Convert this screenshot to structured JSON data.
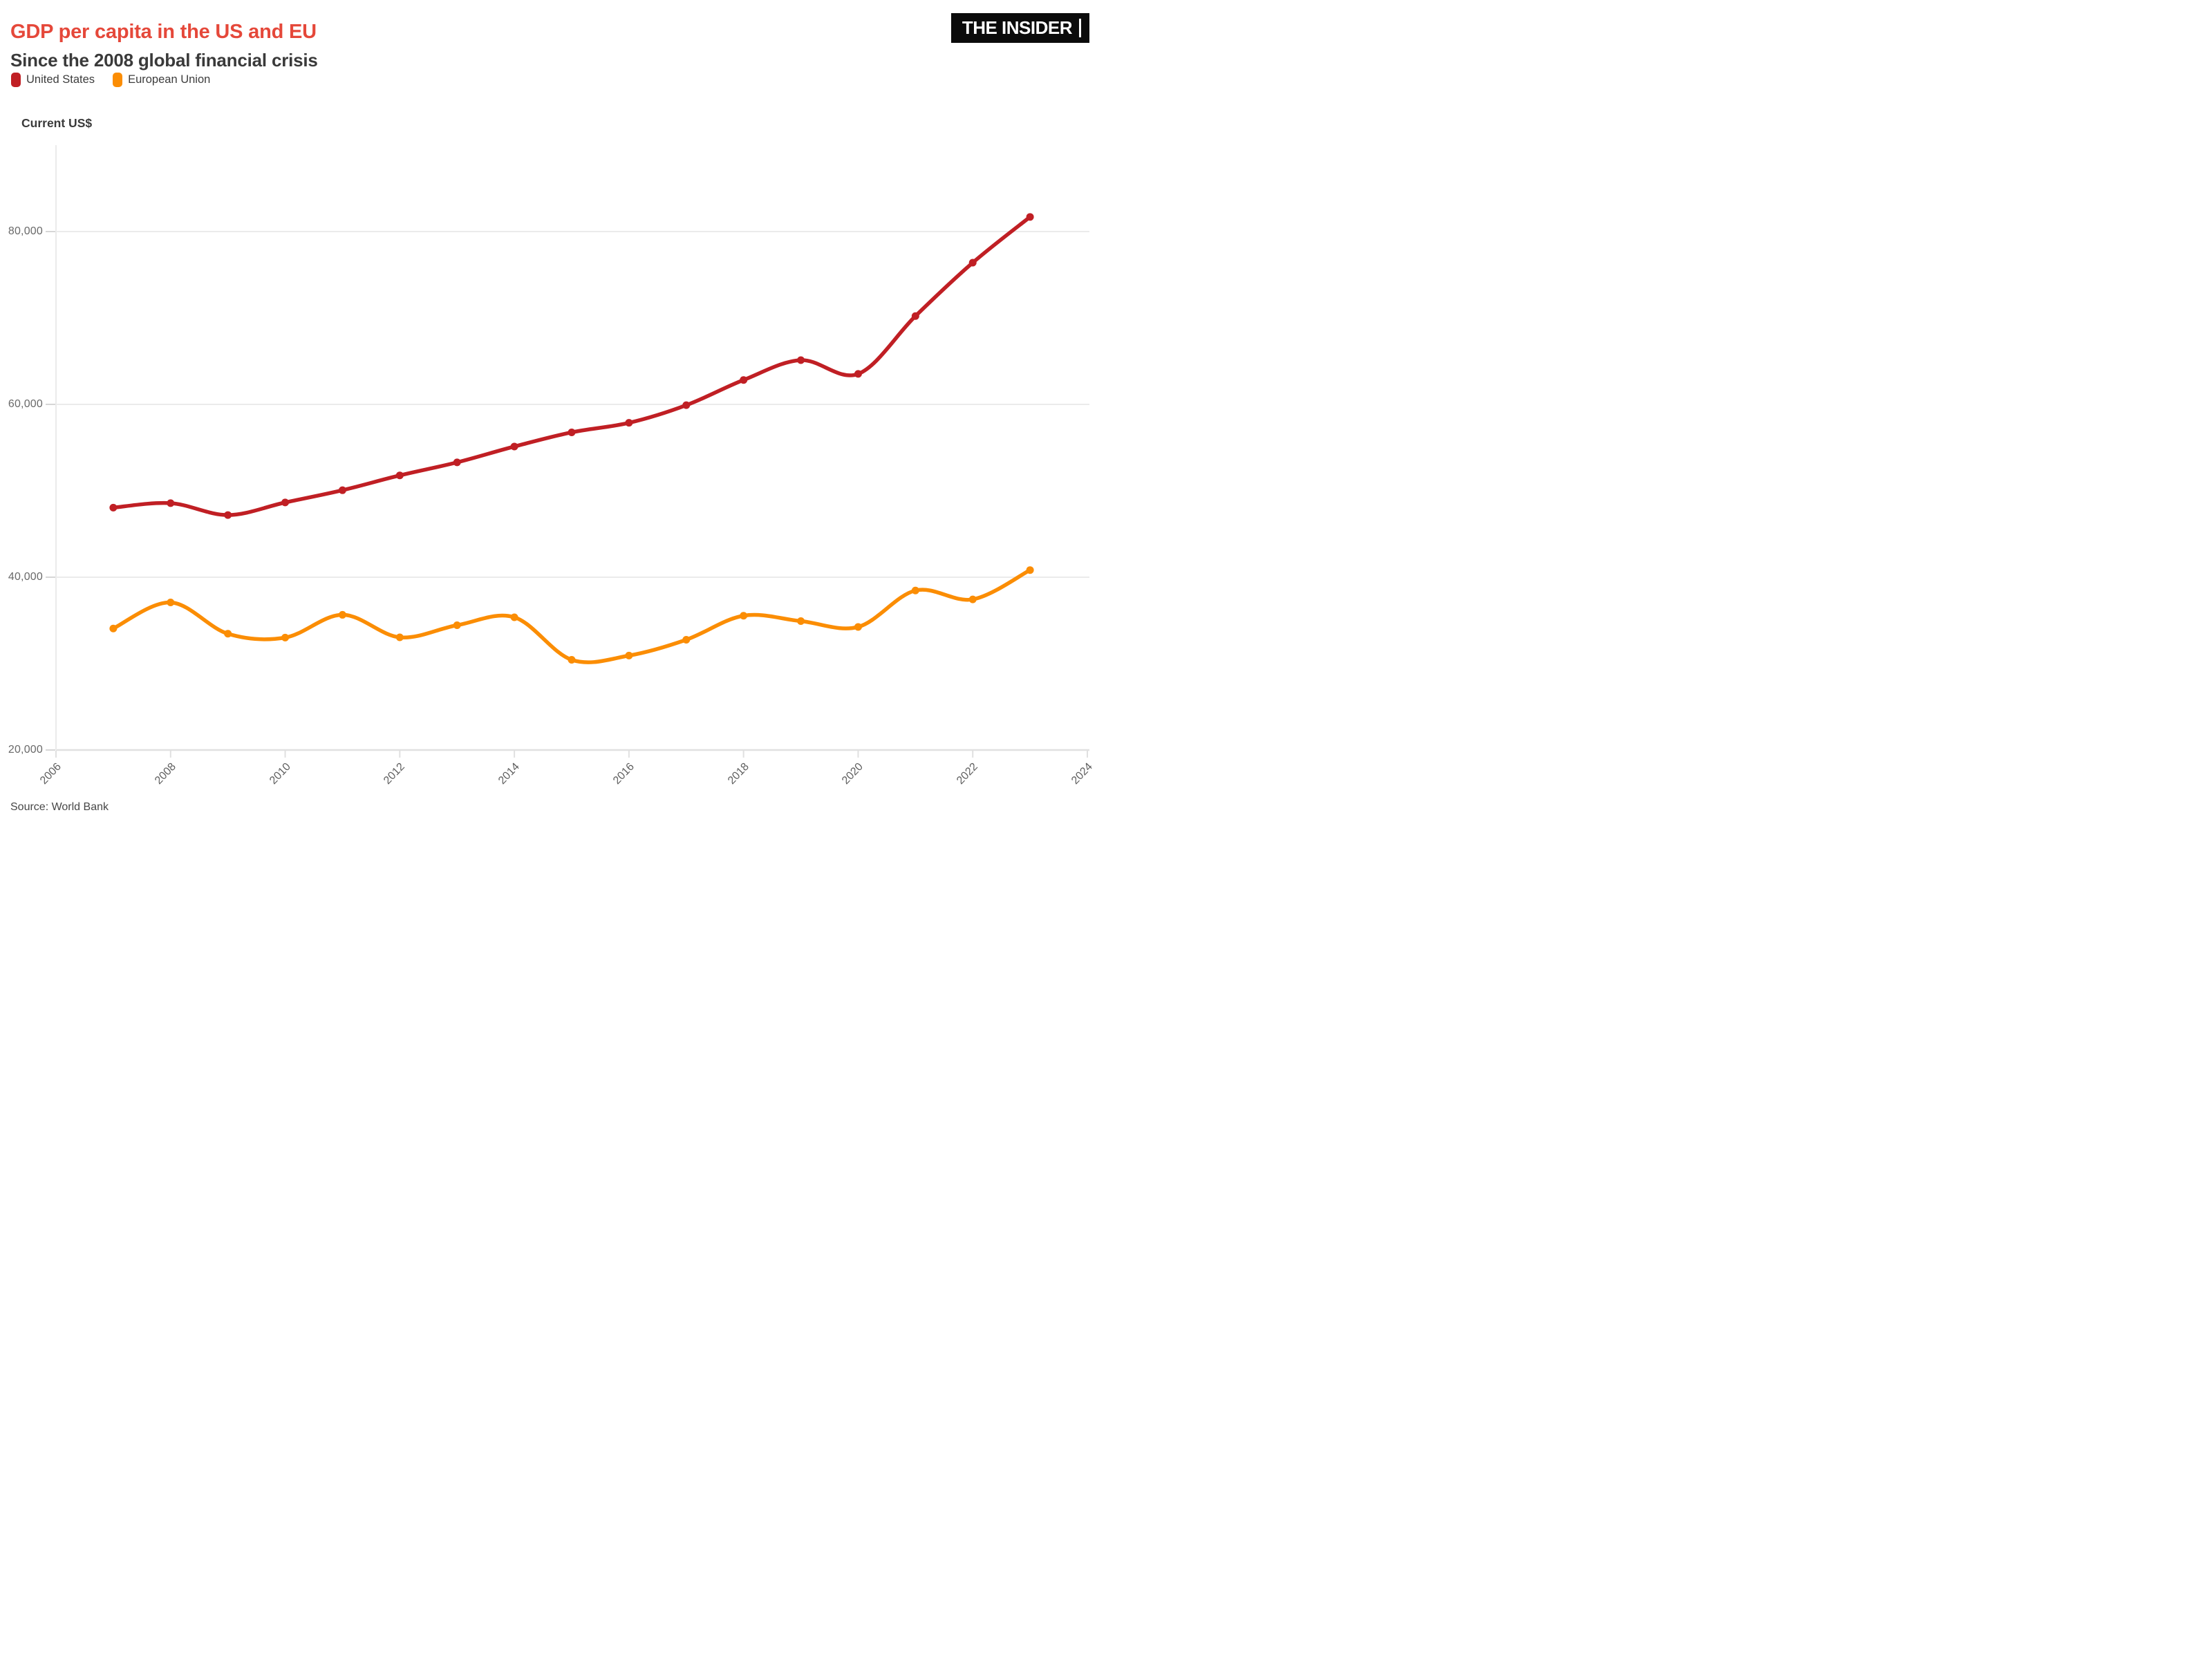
{
  "header": {
    "title": "GDP per capita in the US and EU",
    "subtitle": "Since the 2008 global financial crisis",
    "brand": "THE INSIDER"
  },
  "legend": {
    "items": [
      {
        "label": "United States",
        "color": "#C01F24"
      },
      {
        "label": "European Union",
        "color": "#FB8D04"
      }
    ]
  },
  "axes": {
    "y": {
      "title": "Current US$",
      "tick_labels": [
        "80,000",
        "60,000",
        "40,000",
        "20,000"
      ],
      "tick_values": [
        80000,
        60000,
        40000,
        20000
      ]
    },
    "x": {
      "tick_labels": [
        "2006",
        "2008",
        "2010",
        "2012",
        "2014",
        "2016",
        "2018",
        "2020",
        "2022",
        "2024"
      ],
      "tick_values": [
        2006,
        2008,
        2010,
        2012,
        2014,
        2016,
        2018,
        2020,
        2022,
        2024
      ]
    }
  },
  "footer": {
    "source": "Source: World Bank"
  },
  "chart_data": {
    "type": "line",
    "title": "GDP per capita in the US and EU",
    "subtitle": "Since the 2008 global financial crisis",
    "ylabel": "Current US$",
    "x": [
      2007,
      2008,
      2009,
      2010,
      2011,
      2012,
      2013,
      2014,
      2015,
      2016,
      2017,
      2018,
      2019,
      2020,
      2021,
      2022,
      2023
    ],
    "series": [
      {
        "name": "United States",
        "color": "#C01F24",
        "values": [
          48050,
          48570,
          47195,
          48650,
          50066,
          51784,
          53291,
          55124,
          56763,
          57867,
          59908,
          62823,
          65120,
          63528,
          70219,
          76399,
          81695
        ]
      },
      {
        "name": "European Union",
        "color": "#FB8D04",
        "values": [
          34062,
          37077,
          33457,
          33009,
          35646,
          33041,
          34441,
          35359,
          30439,
          30929,
          32761,
          35542,
          34917,
          34245,
          38461,
          37433,
          40824
        ]
      }
    ],
    "xlim": [
      2006,
      2024
    ],
    "ylim": [
      20000,
      80000
    ],
    "grid": "horizontal",
    "legend_position": "top-left",
    "source": "Source: World Bank"
  }
}
